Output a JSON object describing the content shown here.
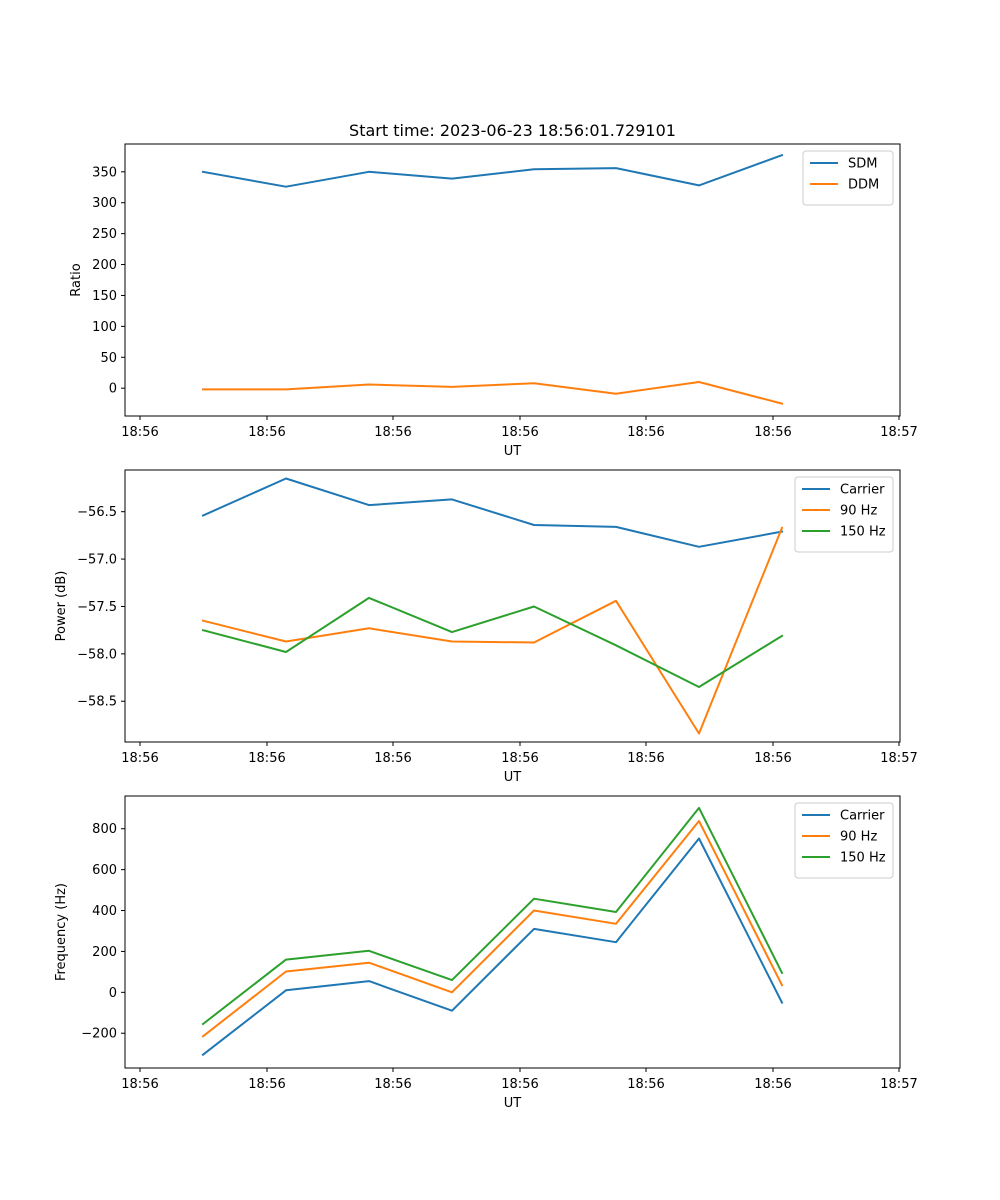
{
  "chart_data": [
    {
      "type": "line",
      "title": "Start time: 2023-06-23 18:56:01.729101",
      "xlabel": "UT",
      "ylabel": "Ratio",
      "x_tick_labels": [
        "18:56",
        "18:56",
        "18:56",
        "18:56",
        "18:56",
        "18:56",
        "18:56",
        "18:57"
      ],
      "y_ticks": [
        0,
        50,
        100,
        150,
        200,
        250,
        300,
        350
      ],
      "ylim": [
        -45,
        395
      ],
      "grid": false,
      "legend_position": "top-right",
      "series": [
        {
          "name": "SDM",
          "color": "#1f77b4",
          "values": [
            350,
            326,
            350,
            339,
            354,
            356,
            328,
            377
          ]
        },
        {
          "name": "DDM",
          "color": "#ff7f0e",
          "values": [
            -2,
            -2,
            6,
            2,
            8,
            -9,
            10,
            -25
          ]
        }
      ]
    },
    {
      "type": "line",
      "title": "",
      "xlabel": "UT",
      "ylabel": "Power (dB)",
      "x_tick_labels": [
        "18:56",
        "18:56",
        "18:56",
        "18:56",
        "18:56",
        "18:56",
        "18:56",
        "18:57"
      ],
      "y_ticks": [
        -56.5,
        -57.0,
        -57.5,
        -58.0,
        -58.5
      ],
      "ylim": [
        -58.93,
        -56.06
      ],
      "grid": false,
      "legend_position": "top-right",
      "series": [
        {
          "name": "Carrier",
          "color": "#1f77b4",
          "values": [
            -56.54,
            -56.15,
            -56.43,
            -56.37,
            -56.64,
            -56.66,
            -56.87,
            -56.71
          ]
        },
        {
          "name": "90 Hz",
          "color": "#ff7f0e",
          "values": [
            -57.65,
            -57.87,
            -57.73,
            -57.87,
            -57.88,
            -57.44,
            -58.84,
            -56.67
          ]
        },
        {
          "name": "150 Hz",
          "color": "#2ca02c",
          "values": [
            -57.75,
            -57.98,
            -57.41,
            -57.77,
            -57.5,
            -57.91,
            -58.35,
            -57.81
          ]
        }
      ]
    },
    {
      "type": "line",
      "title": "",
      "xlabel": "UT",
      "ylabel": "Frequency (Hz)",
      "x_tick_labels": [
        "18:56",
        "18:56",
        "18:56",
        "18:56",
        "18:56",
        "18:56",
        "18:56",
        "18:57"
      ],
      "y_ticks": [
        -200,
        0,
        200,
        400,
        600,
        800
      ],
      "ylim": [
        -370,
        960
      ],
      "grid": false,
      "legend_position": "top-right",
      "series": [
        {
          "name": "Carrier",
          "color": "#1f77b4",
          "values": [
            -305,
            10,
            55,
            -90,
            310,
            245,
            752,
            -50
          ]
        },
        {
          "name": "90 Hz",
          "color": "#ff7f0e",
          "values": [
            -215,
            102,
            145,
            0,
            400,
            335,
            838,
            35
          ]
        },
        {
          "name": "150 Hz",
          "color": "#2ca02c",
          "values": [
            -155,
            160,
            203,
            60,
            458,
            393,
            902,
            95
          ]
        }
      ]
    }
  ]
}
